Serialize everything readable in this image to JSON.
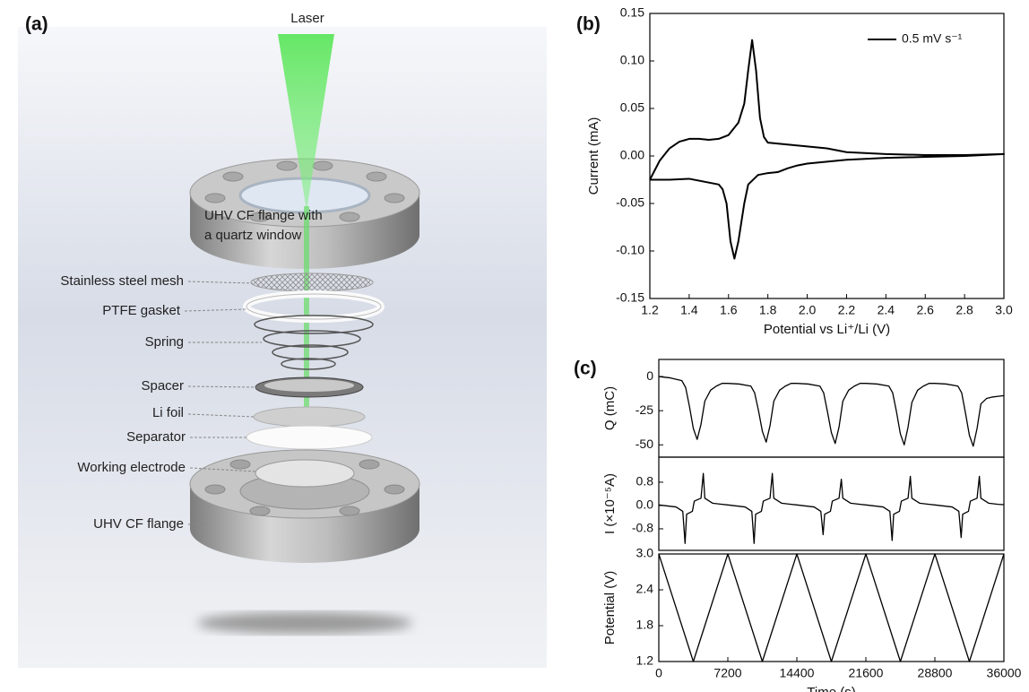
{
  "diagram": {
    "panel_label": "(a)",
    "laser": "Laser",
    "components": [
      [
        "UHV CF flange with",
        "a quartz window"
      ],
      [
        "Stainless steel mesh"
      ],
      [
        "PTFE gasket"
      ],
      [
        "Spring"
      ],
      [
        "Spacer"
      ],
      [
        "Li foil"
      ],
      [
        "Separator"
      ],
      [
        "Working electrode"
      ],
      [
        "UHV CF flange"
      ]
    ]
  },
  "chart_data": [
    {
      "type": "line",
      "panel_label": "(b)",
      "xlabel": "Potential vs Li⁺/Li (V)",
      "ylabel": "Current (mA)",
      "xlim": [
        1.2,
        3.0
      ],
      "ylim": [
        -0.15,
        0.15
      ],
      "xticks": [
        1.2,
        1.4,
        1.6,
        1.8,
        {
          "value": 2,
          "label": "2.0"
        },
        2.2,
        2.4,
        2.6,
        2.8,
        {
          "value": 3,
          "label": "3.0"
        }
      ],
      "yticks": [
        -0.15,
        {
          "value": -0.1,
          "label": "-0.10"
        },
        -0.05,
        {
          "value": 0,
          "label": "0.00"
        },
        0.05,
        {
          "value": 0.1,
          "label": "0.10"
        },
        0.15
      ],
      "legend": "upper right",
      "series": [
        {
          "name": "0.5 mV s⁻¹",
          "color": "#000000",
          "x": [
            1.2,
            1.25,
            1.3,
            1.35,
            1.4,
            1.45,
            1.5,
            1.55,
            1.6,
            1.65,
            1.68,
            1.7,
            1.72,
            1.74,
            1.76,
            1.78,
            1.8,
            1.9,
            2.0,
            2.1,
            2.2,
            2.4,
            2.6,
            2.8,
            3.0,
            2.8,
            2.6,
            2.4,
            2.2,
            2.1,
            2.0,
            1.95,
            1.9,
            1.85,
            1.8,
            1.75,
            1.7,
            1.68,
            1.65,
            1.63,
            1.61,
            1.59,
            1.57,
            1.55,
            1.5,
            1.45,
            1.4,
            1.3,
            1.2
          ],
          "values": [
            -0.025,
            -0.005,
            0.008,
            0.015,
            0.018,
            0.018,
            0.017,
            0.018,
            0.022,
            0.035,
            0.055,
            0.09,
            0.122,
            0.09,
            0.04,
            0.02,
            0.014,
            0.012,
            0.01,
            0.008,
            0.004,
            0.002,
            0.001,
            0.001,
            0.002,
            0.0,
            -0.001,
            -0.002,
            -0.004,
            -0.006,
            -0.008,
            -0.01,
            -0.013,
            -0.017,
            -0.018,
            -0.02,
            -0.03,
            -0.05,
            -0.09,
            -0.108,
            -0.09,
            -0.05,
            -0.035,
            -0.03,
            -0.028,
            -0.026,
            -0.024,
            -0.025,
            -0.025
          ]
        }
      ]
    },
    {
      "type": "line",
      "panel_label": "(c)",
      "ylabel": "Q (mC)",
      "xlim": [
        0,
        36000
      ],
      "ylim": [
        -59,
        12.5
      ],
      "yticks": [
        0,
        -25,
        -50
      ],
      "color": "#000000",
      "x": [
        0,
        1200,
        2400,
        2800,
        3200,
        3600,
        4000,
        4400,
        4800,
        5400,
        6000,
        6600,
        7200,
        8400,
        9600,
        10000,
        10400,
        10800,
        11200,
        11600,
        12000,
        12600,
        13200,
        13800,
        14400,
        15600,
        16800,
        17200,
        17600,
        18000,
        18400,
        18800,
        19200,
        19800,
        20400,
        21000,
        21600,
        22800,
        24000,
        24400,
        24800,
        25200,
        25600,
        26000,
        26400,
        27000,
        27600,
        28200,
        28800,
        30000,
        31200,
        31600,
        32000,
        32400,
        32800,
        33200,
        33600,
        34200,
        34800,
        35400,
        36000
      ],
      "values": [
        0,
        -1,
        -3,
        -8,
        -22,
        -38,
        -46,
        -35,
        -18,
        -10,
        -7,
        -5,
        -5,
        -5.5,
        -7,
        -12,
        -25,
        -40,
        -48,
        -36,
        -18,
        -10,
        -7,
        -5,
        -5,
        -5.5,
        -7,
        -12,
        -26,
        -41,
        -49,
        -37,
        -18,
        -10,
        -7,
        -5,
        -5,
        -5.5,
        -7,
        -12,
        -26,
        -42,
        -50,
        -37,
        -19,
        -10,
        -7,
        -5,
        -5,
        -5.5,
        -7,
        -12,
        -27,
        -43,
        -51,
        -38,
        -20,
        -16,
        -15,
        -14.5,
        -14
      ]
    },
    {
      "type": "line",
      "ylabel": "I (×10⁻⁵A)",
      "xlim": [
        0,
        36000
      ],
      "ylim": [
        -1.54,
        1.66
      ],
      "yticks": [
        0.8,
        {
          "value": 0,
          "label": "0.0"
        },
        -0.8
      ],
      "color": "#000000",
      "x": [
        0,
        1800,
        2500,
        2740,
        2900,
        3500,
        3700,
        4400,
        4640,
        4800,
        5600,
        6600,
        7200,
        9000,
        9700,
        9940,
        10100,
        10700,
        10900,
        11600,
        11840,
        12000,
        12800,
        13800,
        14400,
        16200,
        16900,
        17140,
        17300,
        17900,
        18100,
        18800,
        19040,
        19200,
        20000,
        21000,
        21600,
        23400,
        24100,
        24340,
        24500,
        25100,
        25300,
        26000,
        26240,
        26400,
        27200,
        28200,
        28800,
        30600,
        31300,
        31540,
        31700,
        32300,
        32500,
        33200,
        33440,
        33600,
        34400,
        35400,
        36000
      ],
      "values": [
        0.02,
        -0.05,
        -0.2,
        -1.3,
        -0.3,
        -0.2,
        0.15,
        0.25,
        1.1,
        0.25,
        0.08,
        0.04,
        0.02,
        -0.05,
        -0.2,
        -1.3,
        -0.3,
        -0.2,
        0.15,
        0.25,
        1.1,
        0.25,
        0.08,
        0.04,
        0.02,
        -0.05,
        -0.2,
        -1.0,
        -0.3,
        -0.2,
        0.15,
        0.25,
        0.9,
        0.25,
        0.08,
        0.04,
        0.02,
        -0.05,
        -0.2,
        -1.2,
        -0.3,
        -0.2,
        0.15,
        0.25,
        1.0,
        0.25,
        0.08,
        0.04,
        0.02,
        -0.05,
        -0.2,
        -1.1,
        -0.3,
        -0.2,
        0.15,
        0.25,
        1.0,
        0.25,
        0.08,
        0.04,
        0.03
      ]
    },
    {
      "type": "line",
      "ylabel": "Potential (V)",
      "xlabel": "Time (s)",
      "xlim": [
        0,
        36000
      ],
      "ylim": [
        1.2,
        3.0
      ],
      "xticks": [
        0,
        7200,
        14400,
        21600,
        28800,
        36000
      ],
      "yticks": [
        1.2,
        1.8,
        2.4,
        {
          "value": 3,
          "label": "3.0"
        }
      ],
      "color": "#000000",
      "x": [
        0,
        3600,
        7200,
        10800,
        14400,
        18000,
        21600,
        25200,
        28800,
        32400,
        36000
      ],
      "values": [
        3.0,
        1.2,
        3.0,
        1.2,
        3.0,
        1.2,
        3.0,
        1.2,
        3.0,
        1.2,
        3.0
      ]
    }
  ]
}
